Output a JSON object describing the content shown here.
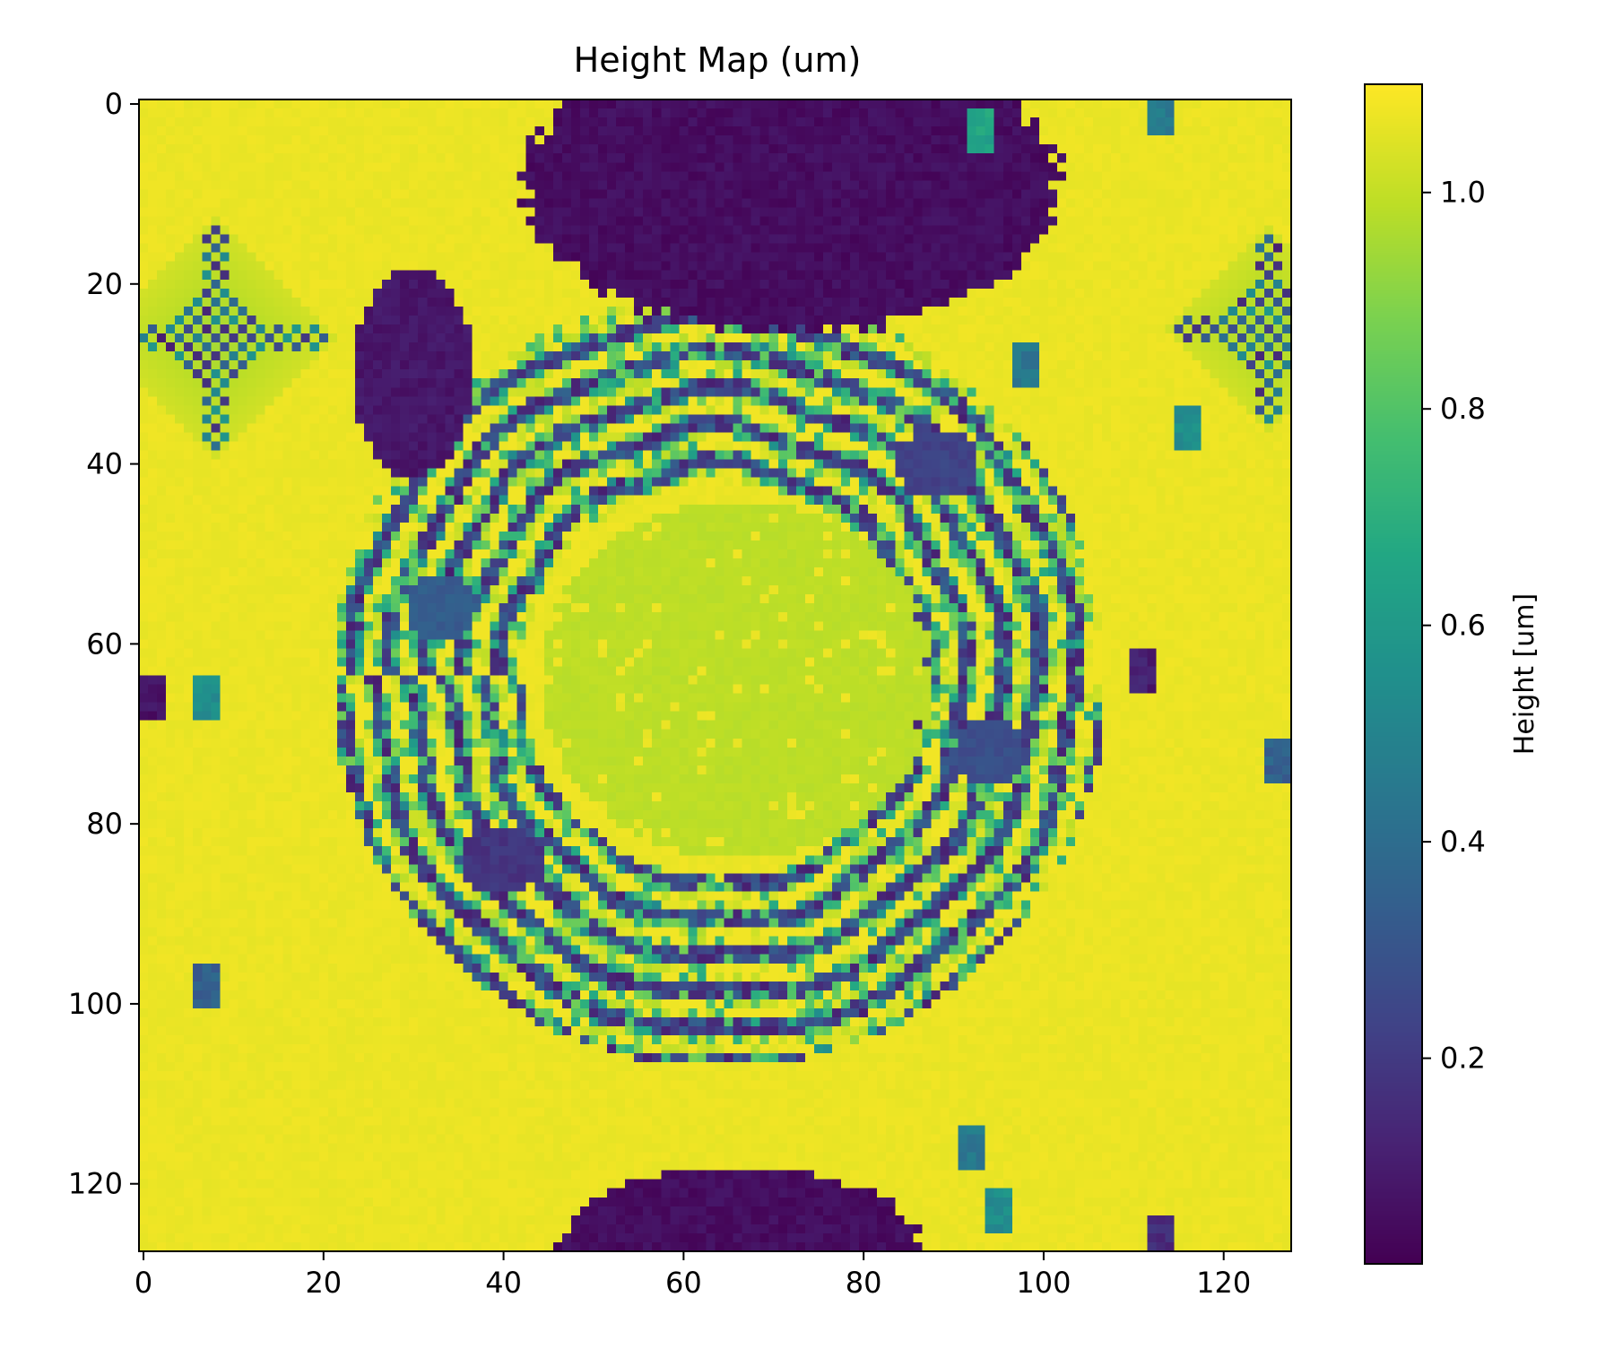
{
  "chart_data": {
    "type": "heatmap",
    "title": "Height Map (um)",
    "xlabel": "",
    "ylabel": "",
    "grid": false,
    "colormap": "viridis",
    "shape": [
      128,
      128
    ],
    "xlim": [
      -0.5,
      127.5
    ],
    "ylim": [
      127.5,
      -0.5
    ],
    "x_ticks": [
      0,
      20,
      40,
      60,
      80,
      100,
      120
    ],
    "y_ticks": [
      0,
      20,
      40,
      60,
      80,
      100,
      120
    ],
    "x_tick_labels": [
      "0",
      "20",
      "40",
      "60",
      "80",
      "100",
      "120"
    ],
    "y_tick_labels": [
      "0",
      "20",
      "40",
      "60",
      "80",
      "100",
      "120"
    ],
    "colorbar": {
      "label": "Height [um]",
      "range": [
        0.01,
        1.1
      ],
      "ticks": [
        0.2,
        0.4,
        0.6,
        0.8,
        1.0
      ],
      "tick_labels": [
        "0.2",
        "0.4",
        "0.6",
        "0.8",
        "1.0"
      ]
    },
    "regions": {
      "background_level": 1.08,
      "ring": {
        "center": [
          64,
          64
        ],
        "inner_radius": 22,
        "outer_radius": 43,
        "level_min": 0.05,
        "level_max": 1.08
      },
      "central_plateau": {
        "center": [
          66,
          64
        ],
        "radius_x": 22,
        "radius_y": 20,
        "level": 0.98
      },
      "dark_blobs": [
        {
          "center_x": 72,
          "center_y": 9,
          "radius_x": 31,
          "radius_y": 17,
          "level": 0.02
        },
        {
          "center_x": 30,
          "center_y": 30,
          "radius_x": 7,
          "radius_y": 12,
          "level": 0.05
        },
        {
          "center_x": 66,
          "center_y": 127,
          "radius_x": 21,
          "radius_y": 9,
          "level": 0.02
        },
        {
          "center_x": 33,
          "center_y": 56,
          "radius_x": 4,
          "radius_y": 4,
          "level": 0.3
        },
        {
          "center_x": 94,
          "center_y": 72,
          "radius_x": 4,
          "radius_y": 4,
          "level": 0.25
        },
        {
          "center_x": 88,
          "center_y": 40,
          "radius_x": 5,
          "radius_y": 4,
          "level": 0.2
        },
        {
          "center_x": 40,
          "center_y": 84,
          "radius_x": 5,
          "radius_y": 4,
          "level": 0.15
        }
      ],
      "cross_patterns": [
        {
          "center_x": 8,
          "center_y": 26,
          "radius": 14
        },
        {
          "center_x": 125,
          "center_y": 25,
          "radius": 12
        }
      ],
      "speckles": [
        {
          "center_x": 7,
          "center_y": 66,
          "level": 0.5
        },
        {
          "center_x": 1,
          "center_y": 66,
          "level": 0.02
        },
        {
          "center_x": 7,
          "center_y": 98,
          "level": 0.3
        },
        {
          "center_x": 116,
          "center_y": 36,
          "level": 0.5
        },
        {
          "center_x": 98,
          "center_y": 29,
          "level": 0.4
        },
        {
          "center_x": 126,
          "center_y": 73,
          "level": 0.3
        },
        {
          "center_x": 113,
          "center_y": 1,
          "level": 0.4
        },
        {
          "center_x": 111,
          "center_y": 63,
          "level": 0.05
        },
        {
          "center_x": 113,
          "center_y": 126,
          "level": 0.1
        },
        {
          "center_x": 92,
          "center_y": 116,
          "level": 0.4
        },
        {
          "center_x": 95,
          "center_y": 123,
          "level": 0.5
        },
        {
          "center_x": 93,
          "center_y": 3,
          "level": 0.6
        }
      ]
    }
  }
}
